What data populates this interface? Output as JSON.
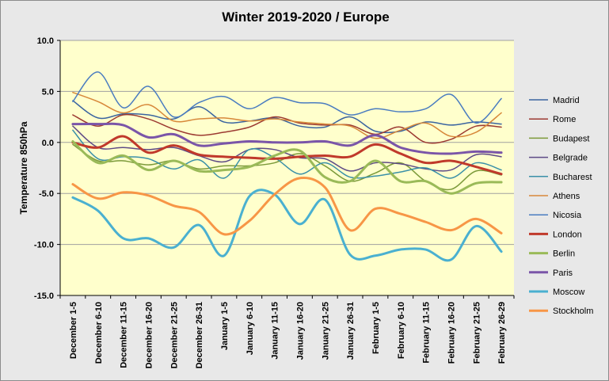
{
  "chart_data": {
    "type": "line",
    "title": "Winter 2019-2020 / Europe",
    "ylabel": "Temperature 850hPa",
    "xlabel": "",
    "ylim": [
      -15,
      10
    ],
    "yticks": [
      10.0,
      5.0,
      0.0,
      -5.0,
      -10.0,
      -15.0
    ],
    "ytick_labels": [
      "10.0",
      "5.0",
      "0.0",
      "-5.0",
      "-10.0",
      "-15.0"
    ],
    "grid": true,
    "legend_position": "right",
    "colors": {
      "plot_background": "#ffffcc",
      "gridline": "#a0a0a0"
    },
    "categories": [
      "December 1-5",
      "December 6-10",
      "December 11-15",
      "December 16-20",
      "December 21-25",
      "December 26-31",
      "January 1-5",
      "January 6-10",
      "January 11-15",
      "January 16-20",
      "January 21-25",
      "January 26-31",
      "February 1-5",
      "February 6-10",
      "February 11-15",
      "February 16-20",
      "February 21-25",
      "February 26-29"
    ],
    "series": [
      {
        "name": "Madrid",
        "color": "#3a64a0",
        "width": 1.5,
        "values": [
          4.1,
          2.4,
          2.8,
          2.7,
          2.3,
          3.5,
          2.0,
          2.1,
          2.4,
          1.6,
          1.5,
          2.5,
          1.1,
          1.1,
          2.0,
          1.7,
          2.0,
          1.8
        ]
      },
      {
        "name": "Rome",
        "color": "#9c3a32",
        "width": 1.5,
        "values": [
          2.7,
          1.6,
          2.7,
          2.3,
          1.3,
          0.7,
          1.0,
          1.5,
          2.5,
          1.9,
          1.7,
          1.7,
          0.8,
          1.5,
          0.0,
          0.3,
          1.6,
          1.5
        ]
      },
      {
        "name": "Budapest",
        "color": "#7c9a3a",
        "width": 1.5,
        "values": [
          -0.2,
          -1.8,
          -1.8,
          -2.2,
          -1.8,
          -2.6,
          -2.3,
          -2.3,
          -2.0,
          -1.1,
          -2.3,
          -3.8,
          -3.0,
          -2.0,
          -3.8,
          -4.6,
          -2.8,
          -3.2
        ]
      },
      {
        "name": "Belgrade",
        "color": "#5e4a86",
        "width": 1.5,
        "values": [
          1.6,
          -0.5,
          -0.5,
          -0.7,
          -0.5,
          -1.3,
          -1.9,
          -0.7,
          -0.7,
          -1.5,
          -1.6,
          -2.8,
          -2.0,
          -2.1,
          -2.6,
          -2.7,
          -1.2,
          -1.4
        ]
      },
      {
        "name": "Bucharest",
        "color": "#3a90a8",
        "width": 1.5,
        "values": [
          1.2,
          -1.6,
          -1.4,
          -1.6,
          -2.6,
          -1.7,
          -3.5,
          -0.7,
          -1.5,
          -3.1,
          -2.0,
          -3.4,
          -3.3,
          -2.9,
          -2.5,
          -3.5,
          -2.0,
          -2.7
        ]
      },
      {
        "name": "Athens",
        "color": "#d7883a",
        "width": 1.5,
        "values": [
          4.9,
          4.0,
          2.9,
          3.7,
          2.1,
          2.3,
          2.4,
          2.1,
          2.3,
          2.0,
          1.8,
          1.6,
          0.4,
          1.2,
          1.9,
          0.6,
          1.0,
          2.9
        ]
      },
      {
        "name": "Nicosia",
        "color": "#4a7cc0",
        "width": 1.5,
        "values": [
          4.0,
          6.9,
          3.4,
          5.5,
          2.5,
          3.9,
          4.5,
          3.3,
          4.4,
          3.9,
          3.8,
          2.7,
          3.3,
          3.0,
          3.3,
          4.7,
          1.9,
          4.3
        ]
      },
      {
        "name": "London",
        "color": "#c0392b",
        "width": 3,
        "values": [
          0.0,
          -0.5,
          0.6,
          -1.0,
          -0.3,
          -1.2,
          -1.4,
          -1.5,
          -1.6,
          -1.4,
          -1.3,
          -1.4,
          -0.2,
          -1.1,
          -2.0,
          -1.8,
          -2.4,
          -3.1
        ]
      },
      {
        "name": "Berlin",
        "color": "#9aba58",
        "width": 3,
        "values": [
          0.1,
          -2.0,
          -1.3,
          -2.7,
          -1.8,
          -2.8,
          -2.7,
          -2.4,
          -1.3,
          -0.8,
          -3.4,
          -3.8,
          -1.8,
          -3.8,
          -3.8,
          -5.0,
          -4.0,
          -3.9
        ]
      },
      {
        "name": "Paris",
        "color": "#7a55a8",
        "width": 3,
        "values": [
          1.8,
          1.8,
          1.7,
          0.5,
          0.8,
          -0.3,
          -0.1,
          0.1,
          0.0,
          0.0,
          0.1,
          -0.3,
          0.7,
          -0.5,
          -1.0,
          -1.1,
          -0.9,
          -1.0
        ]
      },
      {
        "name": "Moscow",
        "color": "#4ab0d0",
        "width": 3,
        "values": [
          -5.4,
          -6.7,
          -9.4,
          -9.4,
          -10.3,
          -8.1,
          -11.1,
          -5.3,
          -5.1,
          -8.0,
          -5.6,
          -11.0,
          -11.1,
          -10.5,
          -10.5,
          -11.5,
          -8.2,
          -10.7
        ]
      },
      {
        "name": "Stockholm",
        "color": "#f79646",
        "width": 3,
        "values": [
          -4.1,
          -5.5,
          -4.9,
          -5.2,
          -6.2,
          -6.8,
          -9.0,
          -7.7,
          -5.1,
          -3.5,
          -4.4,
          -8.6,
          -6.5,
          -7.0,
          -7.8,
          -8.6,
          -7.5,
          -8.9
        ]
      }
    ]
  }
}
